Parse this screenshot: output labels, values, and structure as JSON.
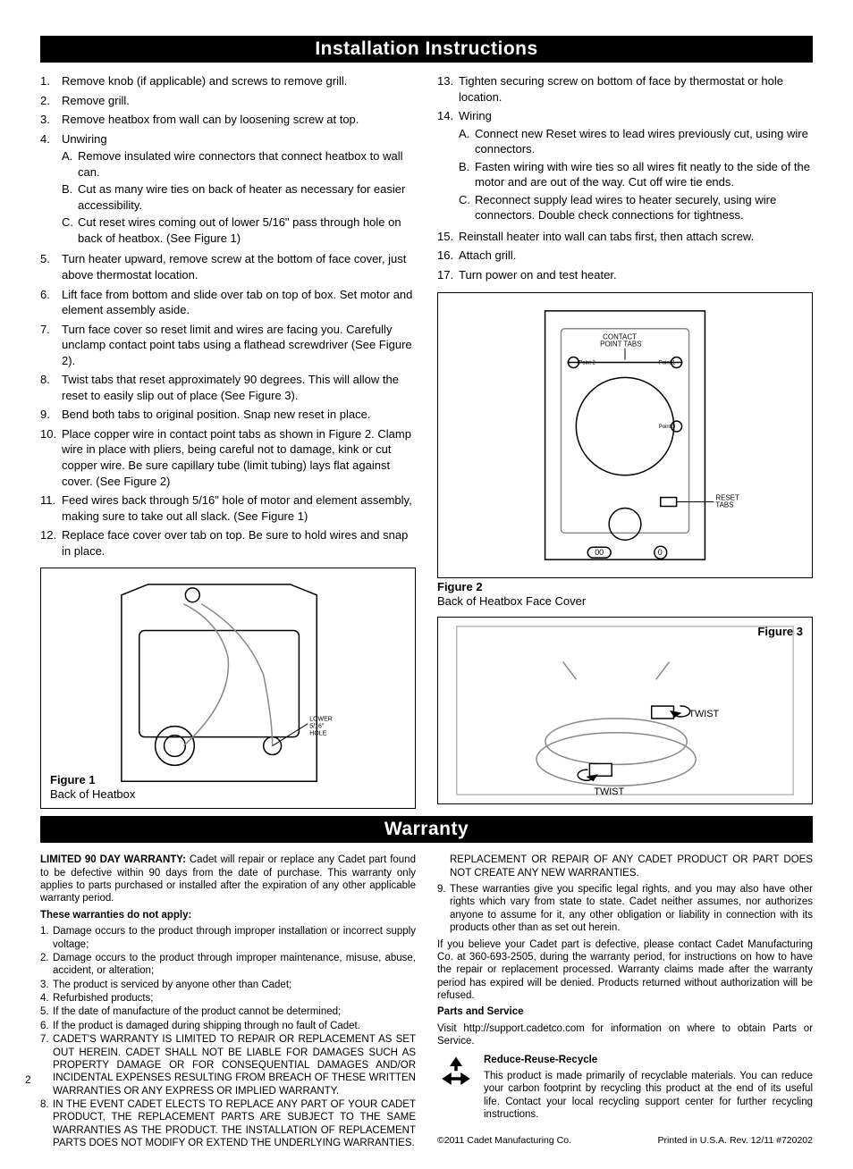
{
  "headers": {
    "install": "Installation Instructions",
    "warranty": "Warranty"
  },
  "install_left": [
    {
      "n": "1.",
      "t": "Remove knob (if applicable) and screws to remove grill."
    },
    {
      "n": "2.",
      "t": "Remove grill."
    },
    {
      "n": "3.",
      "t": "Remove heatbox from wall can by loosening screw at top."
    },
    {
      "n": "4.",
      "t": "Unwiring",
      "sub": [
        {
          "l": "A.",
          "t": "Remove insulated wire connectors that connect heatbox to wall can."
        },
        {
          "l": "B.",
          "t": "Cut as many wire ties on back of heater as necessary for easier accessibility."
        },
        {
          "l": "C.",
          "t": "Cut reset wires coming out of lower 5/16\" pass through hole on back of heatbox. (See Figure 1)"
        }
      ]
    },
    {
      "n": "5.",
      "t": "Turn heater upward, remove screw at the bottom of face cover, just above thermostat location."
    },
    {
      "n": "6.",
      "t": "Lift face from bottom and slide over tab on top of box. Set motor and element assembly aside."
    },
    {
      "n": "7.",
      "t": "Turn face cover so reset limit and wires are facing you. Carefully unclamp contact point tabs using a flathead screwdriver (See Figure 2)."
    },
    {
      "n": "8.",
      "t": "Twist tabs that reset approximately 90 degrees. This will allow the reset to easily slip out of place (See Figure 3)."
    },
    {
      "n": "9.",
      "t": "Bend both tabs to original position. Snap new reset in place."
    },
    {
      "n": "10.",
      "t": "Place copper wire in contact point tabs as shown in Figure 2. Clamp wire in place with pliers, being careful not to damage, kink or cut copper wire. Be sure capillary tube (limit tubing) lays flat against cover. (See Figure 2)"
    },
    {
      "n": "11.",
      "t": "Feed wires back through 5/16\" hole of motor and element assembly, making sure to take out all slack. (See Figure 1)"
    },
    {
      "n": "12.",
      "t": "Replace face cover over tab on top. Be sure to hold wires and snap in place."
    }
  ],
  "install_right": [
    {
      "n": "13.",
      "t": "Tighten securing screw on bottom of face by thermostat or hole location."
    },
    {
      "n": "14.",
      "t": "Wiring",
      "sub": [
        {
          "l": "A.",
          "t": "Connect new Reset wires to lead wires previously cut, using wire connectors."
        },
        {
          "l": "B.",
          "t": "Fasten wiring with wire ties so all wires fit neatly to the side of the motor and are out of the way. Cut off wire tie ends."
        },
        {
          "l": "C.",
          "t": "Reconnect supply lead wires to heater securely, using wire connectors. Double check connections for tightness."
        }
      ]
    },
    {
      "n": "15.",
      "t": "Reinstall heater into wall can tabs first, then attach screw."
    },
    {
      "n": "16.",
      "t": "Attach grill."
    },
    {
      "n": "17.",
      "t": "Turn power on and test heater."
    }
  ],
  "figures": {
    "fig1_num": "Figure 1",
    "fig1_cap": "Back of Heatbox",
    "fig1_label": "LOWER 5/16\" HOLE",
    "fig2_num": "Figure 2",
    "fig2_cap": "Back of Heatbox Face Cover",
    "fig2_labels": {
      "contact": "CONTACT POINT TABS",
      "reset": "RESET TABS",
      "p1": "Point 1",
      "p2": "Point 2",
      "p3": "Point 3"
    },
    "fig3_num": "Figure 3",
    "fig3_twist": "TWIST"
  },
  "warranty": {
    "intro_bold": "LIMITED 90 DAY WARRANTY:",
    "intro": " Cadet will repair or replace any Cadet part found to be defective within 90 days from the date of purchase. This warranty only applies to parts purchased or installed after the expiration of any other applicable warranty period.",
    "noapply_hdr": "These warranties do not apply:",
    "noapply": [
      {
        "n": "1.",
        "t": "Damage occurs to the product through improper installation or incorrect supply voltage;"
      },
      {
        "n": "2.",
        "t": "Damage occurs to the product through improper maintenance, misuse, abuse, accident, or alteration;"
      },
      {
        "n": "3.",
        "t": "The product is serviced by anyone other than Cadet;"
      },
      {
        "n": "4.",
        "t": "Refurbished products;"
      },
      {
        "n": "5.",
        "t": "If the date of manufacture of the product cannot be determined;"
      },
      {
        "n": "6.",
        "t": "If the product is damaged during shipping through no fault of Cadet."
      },
      {
        "n": "7.",
        "t": "CADET'S WARRANTY IS LIMITED TO REPAIR OR REPLACEMENT AS SET OUT HEREIN. CADET SHALL NOT BE LIABLE FOR DAMAGES SUCH AS PROPERTY DAMAGE OR FOR CONSEQUENTIAL DAMAGES AND/OR INCIDENTAL EXPENSES RESULTING FROM BREACH OF THESE WRITTEN WARRANTIES OR ANY EXPRESS OR IMPLIED WARRANTY."
      },
      {
        "n": "8.",
        "t": "IN THE EVENT CADET ELECTS TO REPLACE ANY PART OF YOUR CADET PRODUCT, THE REPLACEMENT PARTS ARE SUBJECT TO THE SAME WARRANTIES AS THE PRODUCT. THE INSTALLATION OF REPLACEMENT PARTS DOES NOT MODIFY OR EXTEND THE UNDERLYING WARRANTIES."
      }
    ],
    "right_cont": "REPLACEMENT OR REPAIR OF ANY CADET PRODUCT OR PART DOES NOT CREATE ANY NEW WARRANTIES.",
    "right9": {
      "n": "9.",
      "t": "These warranties give you specific legal rights, and you may also have other rights which vary from state to state. Cadet neither assumes, nor authorizes anyone to assume for it, any other obligation or liability in connection with its products other than as set out herein."
    },
    "contact": "If you believe your Cadet part is defective, please contact Cadet Manufacturing Co. at 360-693-2505, during the warranty period, for instructions on how to have the repair or replacement processed. Warranty claims made after the warranty period has expired will be denied. Products returned without authorization will be refused.",
    "parts_hdr": "Parts and Service",
    "parts": "Visit http://support.cadetco.com for information on where to obtain Parts or Service.",
    "recycle_hdr": "Reduce-Reuse-Recycle",
    "recycle": "This product is made primarily of recyclable materials. You can reduce your carbon footprint by recycling this product at the end of its useful life. Contact your local recycling support center for further recycling instructions."
  },
  "footer": {
    "page": "2",
    "copyright": "©2011 Cadet Manufacturing Co.",
    "rev": "Printed in U.S.A.   Rev. 12/11   #720202"
  },
  "style": {
    "header_bg": "#000000",
    "header_fg": "#ffffff",
    "body_fontsize": 13,
    "warranty_fontsize": 11.5
  }
}
